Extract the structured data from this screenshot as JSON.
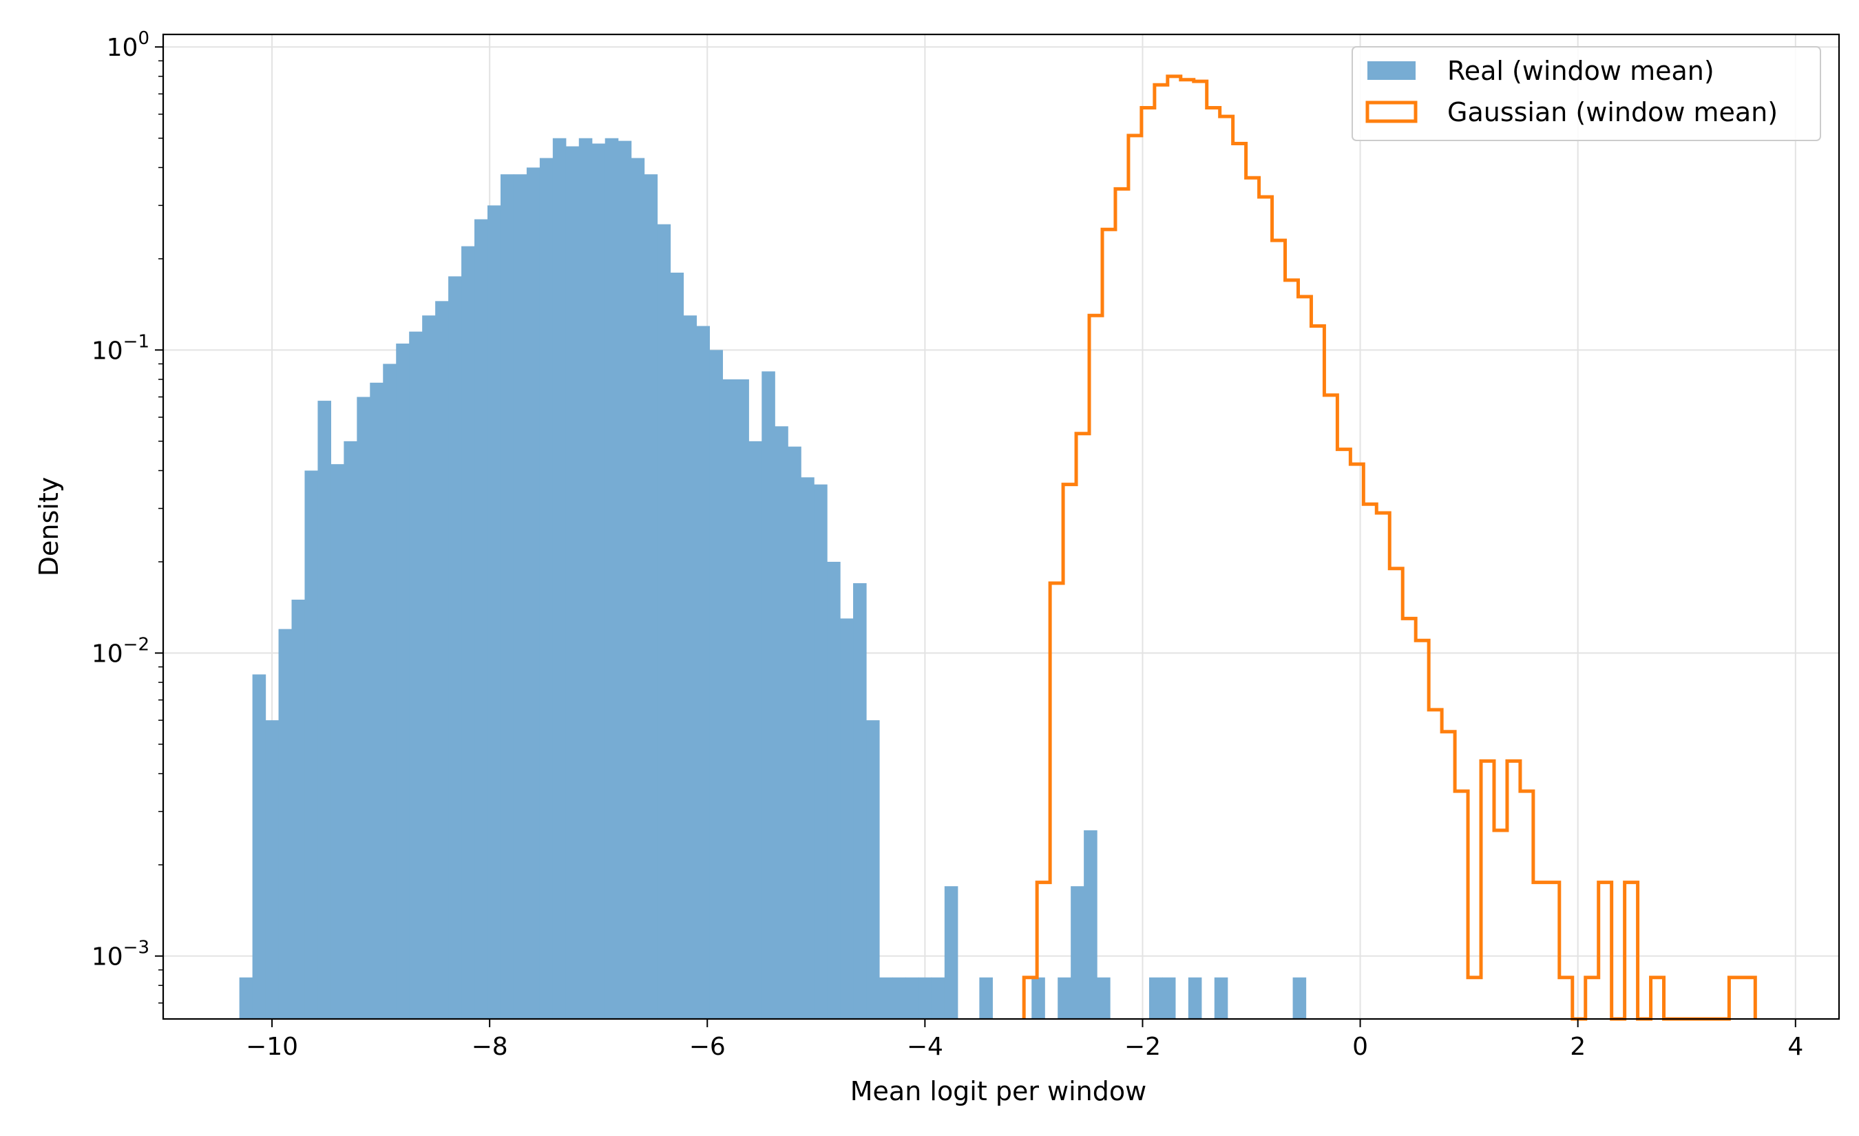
{
  "chart_data": {
    "type": "histogram",
    "title": "",
    "xlabel": "Mean logit per window",
    "ylabel": "Density",
    "xlim": [
      -11.0,
      4.4
    ],
    "ylim": [
      0.00062,
      1.1
    ],
    "yscale": "log",
    "grid": true,
    "legend_position": "top-right",
    "x_ticks": [
      -10,
      -8,
      -6,
      -4,
      -2,
      0,
      2,
      4
    ],
    "x_tick_labels": [
      "−10",
      "−8",
      "−6",
      "−4",
      "−2",
      "0",
      "2",
      "4"
    ],
    "y_ticks": [
      0.001,
      0.01,
      0.1,
      1
    ],
    "y_tick_labels": [
      {
        "base": "10",
        "exp": "−3"
      },
      {
        "base": "10",
        "exp": "−2"
      },
      {
        "base": "10",
        "exp": "−1"
      },
      {
        "base": "10",
        "exp": "0"
      }
    ],
    "colors": {
      "real": "#77acd3",
      "gaussian": "#ff7f0e"
    },
    "series": [
      {
        "name": "Real (window mean)",
        "style": "filled",
        "bins": [
          [
            -10.3,
            -10.18,
            0.00085
          ],
          [
            -10.18,
            -10.06,
            0.0085
          ],
          [
            -10.06,
            -9.94,
            0.006
          ],
          [
            -9.94,
            -9.82,
            0.012
          ],
          [
            -9.82,
            -9.7,
            0.015
          ],
          [
            -9.7,
            -9.58,
            0.04
          ],
          [
            -9.58,
            -9.46,
            0.068
          ],
          [
            -9.46,
            -9.34,
            0.042
          ],
          [
            -9.34,
            -9.22,
            0.05
          ],
          [
            -9.22,
            -9.1,
            0.07
          ],
          [
            -9.1,
            -8.98,
            0.078
          ],
          [
            -8.98,
            -8.86,
            0.09
          ],
          [
            -8.86,
            -8.74,
            0.105
          ],
          [
            -8.74,
            -8.62,
            0.115
          ],
          [
            -8.62,
            -8.5,
            0.13
          ],
          [
            -8.5,
            -8.38,
            0.145
          ],
          [
            -8.38,
            -8.26,
            0.175
          ],
          [
            -8.26,
            -8.14,
            0.22
          ],
          [
            -8.14,
            -8.02,
            0.27
          ],
          [
            -8.02,
            -7.9,
            0.3
          ],
          [
            -7.9,
            -7.78,
            0.38
          ],
          [
            -7.78,
            -7.66,
            0.38
          ],
          [
            -7.66,
            -7.54,
            0.4
          ],
          [
            -7.54,
            -7.42,
            0.43
          ],
          [
            -7.42,
            -7.3,
            0.5
          ],
          [
            -7.3,
            -7.18,
            0.47
          ],
          [
            -7.18,
            -7.06,
            0.5
          ],
          [
            -7.06,
            -6.94,
            0.48
          ],
          [
            -6.94,
            -6.82,
            0.5
          ],
          [
            -6.82,
            -6.7,
            0.49
          ],
          [
            -6.7,
            -6.58,
            0.43
          ],
          [
            -6.58,
            -6.46,
            0.38
          ],
          [
            -6.46,
            -6.34,
            0.26
          ],
          [
            -6.34,
            -6.22,
            0.18
          ],
          [
            -6.22,
            -6.1,
            0.13
          ],
          [
            -6.1,
            -5.98,
            0.12
          ],
          [
            -5.98,
            -5.86,
            0.1
          ],
          [
            -5.86,
            -5.74,
            0.08
          ],
          [
            -5.74,
            -5.62,
            0.08
          ],
          [
            -5.62,
            -5.5,
            0.05
          ],
          [
            -5.5,
            -5.38,
            0.085
          ],
          [
            -5.38,
            -5.26,
            0.056
          ],
          [
            -5.26,
            -5.14,
            0.048
          ],
          [
            -5.14,
            -5.02,
            0.038
          ],
          [
            -5.02,
            -4.9,
            0.036
          ],
          [
            -4.9,
            -4.78,
            0.02
          ],
          [
            -4.78,
            -4.66,
            0.013
          ],
          [
            -4.66,
            -4.54,
            0.017
          ],
          [
            -4.54,
            -4.42,
            0.006
          ],
          [
            -4.42,
            -4.3,
            0.00085
          ],
          [
            -4.3,
            -4.18,
            0.00085
          ],
          [
            -4.18,
            -4.06,
            0.00085
          ],
          [
            -4.06,
            -3.94,
            0.00085
          ],
          [
            -3.94,
            -3.82,
            0.00085
          ],
          [
            -3.82,
            -3.7,
            0.0017
          ],
          [
            -3.5,
            -3.38,
            0.00085
          ],
          [
            -3.02,
            -2.9,
            0.00085
          ],
          [
            -2.78,
            -2.66,
            0.00085
          ],
          [
            -2.66,
            -2.54,
            0.0017
          ],
          [
            -2.54,
            -2.42,
            0.0026
          ],
          [
            -2.42,
            -2.3,
            0.00085
          ],
          [
            -1.94,
            -1.82,
            0.00085
          ],
          [
            -1.82,
            -1.7,
            0.00085
          ],
          [
            -1.58,
            -1.46,
            0.00085
          ],
          [
            -1.34,
            -1.22,
            0.00085
          ],
          [
            -0.62,
            -0.5,
            0.00085
          ]
        ]
      },
      {
        "name": "Gaussian (window mean)",
        "style": "step",
        "bins": [
          [
            -3.09,
            -2.97,
            0.00085
          ],
          [
            -2.97,
            -2.85,
            0.00175
          ],
          [
            -2.85,
            -2.73,
            0.017
          ],
          [
            -2.73,
            -2.61,
            0.036
          ],
          [
            -2.61,
            -2.49,
            0.053
          ],
          [
            -2.49,
            -2.37,
            0.13
          ],
          [
            -2.37,
            -2.25,
            0.25
          ],
          [
            -2.25,
            -2.13,
            0.34
          ],
          [
            -2.13,
            -2.01,
            0.51
          ],
          [
            -2.01,
            -1.89,
            0.63
          ],
          [
            -1.89,
            -1.77,
            0.75
          ],
          [
            -1.77,
            -1.65,
            0.8
          ],
          [
            -1.65,
            -1.53,
            0.78
          ],
          [
            -1.53,
            -1.41,
            0.77
          ],
          [
            -1.41,
            -1.29,
            0.63
          ],
          [
            -1.29,
            -1.17,
            0.59
          ],
          [
            -1.17,
            -1.05,
            0.48
          ],
          [
            -1.05,
            -0.93,
            0.37
          ],
          [
            -0.93,
            -0.81,
            0.32
          ],
          [
            -0.81,
            -0.69,
            0.23
          ],
          [
            -0.69,
            -0.57,
            0.17
          ],
          [
            -0.57,
            -0.45,
            0.15
          ],
          [
            -0.45,
            -0.33,
            0.12
          ],
          [
            -0.33,
            -0.21,
            0.071
          ],
          [
            -0.21,
            -0.09,
            0.047
          ],
          [
            -0.09,
            0.03,
            0.042
          ],
          [
            0.03,
            0.15,
            0.031
          ],
          [
            0.15,
            0.27,
            0.029
          ],
          [
            0.27,
            0.39,
            0.019
          ],
          [
            0.39,
            0.51,
            0.013
          ],
          [
            0.51,
            0.63,
            0.011
          ],
          [
            0.63,
            0.75,
            0.0065
          ],
          [
            0.75,
            0.87,
            0.0055
          ],
          [
            0.87,
            0.99,
            0.0035
          ],
          [
            0.99,
            1.11,
            0.00085
          ],
          [
            1.11,
            1.23,
            0.0044
          ],
          [
            1.23,
            1.35,
            0.0026
          ],
          [
            1.35,
            1.47,
            0.0044
          ],
          [
            1.47,
            1.59,
            0.0035
          ],
          [
            1.59,
            1.71,
            0.00175
          ],
          [
            1.71,
            1.83,
            0.00175
          ],
          [
            1.83,
            1.95,
            0.00085
          ],
          [
            1.95,
            2.07,
            0.0
          ],
          [
            2.07,
            2.19,
            0.00085
          ],
          [
            2.19,
            2.31,
            0.00175
          ],
          [
            2.31,
            2.43,
            0.0
          ],
          [
            2.43,
            2.55,
            0.00175
          ],
          [
            2.55,
            2.67,
            0.0
          ],
          [
            2.67,
            2.79,
            0.00085
          ],
          [
            2.79,
            2.91,
            0.0
          ],
          [
            2.91,
            3.03,
            0.0
          ],
          [
            3.03,
            3.15,
            0.0
          ],
          [
            3.15,
            3.27,
            0.0
          ],
          [
            3.27,
            3.39,
            0.0
          ],
          [
            3.39,
            3.51,
            0.00085
          ],
          [
            3.51,
            3.63,
            0.00085
          ]
        ]
      }
    ]
  }
}
